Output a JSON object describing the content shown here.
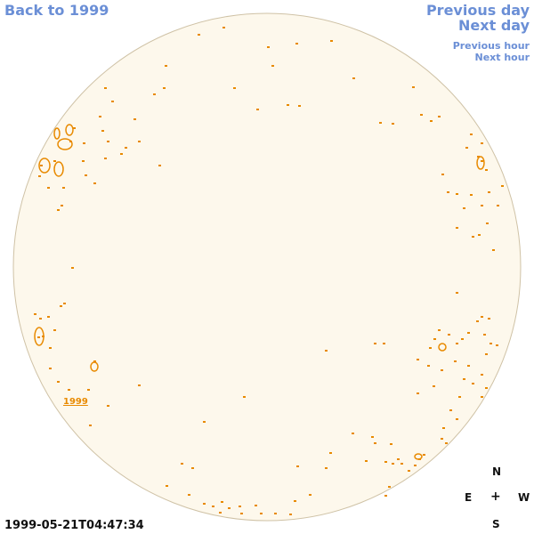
{
  "nav": {
    "back_label": "Back to 1999",
    "previous_day_label": "Previous day",
    "next_day_label": "Next day",
    "previous_hour_label": "Previous hour",
    "next_hour_label": "Next hour"
  },
  "disk": {
    "marker_label": "1999",
    "fill_color": "#fdf8ec",
    "border_color": "#cfc2a6",
    "feature_color": "#e88a00"
  },
  "timestamp": "1999-05-21T04:47:34",
  "compass": {
    "north": "N",
    "east": "E",
    "center": "+",
    "west": "W",
    "south": "S"
  }
}
